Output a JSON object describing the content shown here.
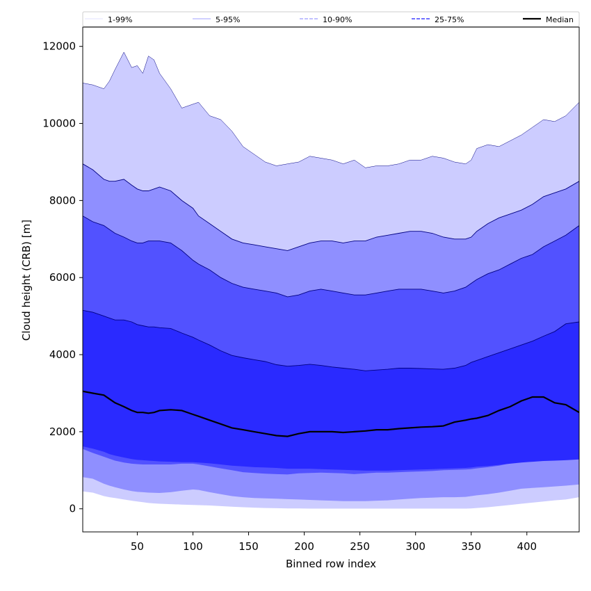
{
  "chart_data": {
    "type": "area",
    "title": "",
    "xlabel": "Binned row index",
    "ylabel": "Cloud height (CRB) [m]",
    "xlim": [
      1,
      447
    ],
    "ylim": [
      -600,
      12500
    ],
    "xticks": [
      50,
      100,
      150,
      200,
      250,
      300,
      350,
      400
    ],
    "yticks": [
      0,
      2000,
      4000,
      6000,
      8000,
      10000,
      12000
    ],
    "legend_placement": "top, horizontal",
    "legend": [
      {
        "label": "1-99%",
        "style": "band-1-99"
      },
      {
        "label": "5-95%",
        "style": "band-5-95"
      },
      {
        "label": "10-90%",
        "style": "band-10-90"
      },
      {
        "label": "25-75%",
        "style": "band-25-75"
      },
      {
        "label": "Median",
        "style": "median"
      }
    ],
    "colors": {
      "band_1_99": "#ccccff",
      "band_5_95": "#8f8fff",
      "band_10_90": "#5252ff",
      "band_25_75": "#2a2aff",
      "edge": "#000080",
      "median": "#000000"
    },
    "x": [
      1,
      10,
      20,
      25,
      30,
      38,
      45,
      50,
      55,
      60,
      65,
      70,
      80,
      90,
      100,
      105,
      115,
      125,
      135,
      145,
      155,
      165,
      175,
      185,
      195,
      205,
      215,
      225,
      235,
      245,
      255,
      265,
      275,
      285,
      295,
      305,
      315,
      325,
      335,
      345,
      350,
      355,
      365,
      375,
      385,
      395,
      405,
      415,
      425,
      435,
      447
    ],
    "series": [
      {
        "name": "1-99%",
        "lower": [
          450,
          420,
          330,
          300,
          280,
          240,
          210,
          190,
          170,
          150,
          140,
          130,
          120,
          110,
          100,
          95,
          85,
          70,
          55,
          40,
          30,
          20,
          15,
          10,
          10,
          5,
          5,
          5,
          5,
          5,
          5,
          5,
          5,
          5,
          5,
          5,
          5,
          5,
          5,
          5,
          10,
          20,
          40,
          70,
          100,
          130,
          160,
          190,
          220,
          240,
          300
        ],
        "upper": [
          11050,
          11000,
          10900,
          11100,
          11400,
          11850,
          11450,
          11500,
          11300,
          11750,
          11650,
          11300,
          10900,
          10400,
          10500,
          10550,
          10200,
          10100,
          9800,
          9400,
          9200,
          9000,
          8900,
          8950,
          9000,
          9150,
          9100,
          9050,
          8950,
          9050,
          8850,
          8900,
          8900,
          8950,
          9050,
          9050,
          9150,
          9100,
          9000,
          8950,
          9050,
          9350,
          9450,
          9400,
          9550,
          9700,
          9900,
          10100,
          10050,
          10200,
          10550
        ]
      },
      {
        "name": "5-95%",
        "lower": [
          820,
          780,
          650,
          600,
          560,
          500,
          460,
          440,
          430,
          420,
          415,
          410,
          430,
          470,
          500,
          490,
          430,
          380,
          330,
          300,
          280,
          270,
          260,
          250,
          240,
          230,
          220,
          210,
          200,
          200,
          200,
          210,
          220,
          240,
          260,
          280,
          290,
          300,
          300,
          310,
          330,
          350,
          380,
          420,
          470,
          520,
          540,
          560,
          580,
          600,
          630
        ],
        "upper": [
          8950,
          8800,
          8550,
          8500,
          8500,
          8550,
          8400,
          8300,
          8250,
          8250,
          8300,
          8350,
          8250,
          8000,
          7800,
          7600,
          7400,
          7200,
          7000,
          6900,
          6850,
          6800,
          6750,
          6700,
          6800,
          6900,
          6950,
          6950,
          6900,
          6950,
          6950,
          7050,
          7100,
          7150,
          7200,
          7200,
          7150,
          7050,
          7000,
          7000,
          7050,
          7200,
          7400,
          7550,
          7650,
          7750,
          7900,
          8100,
          8200,
          8300,
          8500
        ]
      },
      {
        "name": "10-90%",
        "lower": [
          1550,
          1450,
          1350,
          1300,
          1250,
          1200,
          1170,
          1160,
          1150,
          1150,
          1150,
          1150,
          1150,
          1170,
          1170,
          1150,
          1100,
          1050,
          1000,
          950,
          930,
          910,
          900,
          890,
          920,
          930,
          940,
          930,
          920,
          900,
          920,
          940,
          940,
          950,
          960,
          970,
          980,
          1000,
          1010,
          1020,
          1030,
          1050,
          1080,
          1120,
          1180,
          1250,
          1280,
          1300,
          1300,
          1290,
          1300
        ],
        "upper": [
          7600,
          7450,
          7350,
          7250,
          7150,
          7050,
          6950,
          6900,
          6900,
          6950,
          6950,
          6950,
          6900,
          6700,
          6450,
          6350,
          6200,
          6000,
          5850,
          5750,
          5700,
          5650,
          5600,
          5500,
          5550,
          5650,
          5700,
          5650,
          5600,
          5550,
          5550,
          5600,
          5650,
          5700,
          5700,
          5700,
          5650,
          5600,
          5650,
          5750,
          5850,
          5950,
          6100,
          6200,
          6350,
          6500,
          6600,
          6800,
          6950,
          7100,
          7350
        ]
      },
      {
        "name": "25-75%",
        "lower": [
          1620,
          1560,
          1480,
          1420,
          1380,
          1330,
          1290,
          1270,
          1260,
          1250,
          1240,
          1230,
          1220,
          1210,
          1210,
          1200,
          1180,
          1150,
          1120,
          1100,
          1080,
          1070,
          1060,
          1040,
          1040,
          1040,
          1030,
          1020,
          1010,
          1000,
          990,
          990,
          990,
          1000,
          1010,
          1020,
          1030,
          1040,
          1050,
          1060,
          1070,
          1090,
          1110,
          1140,
          1170,
          1200,
          1220,
          1240,
          1250,
          1260,
          1280
        ],
        "upper": [
          5150,
          5100,
          5000,
          4950,
          4900,
          4900,
          4850,
          4780,
          4750,
          4720,
          4720,
          4700,
          4680,
          4560,
          4450,
          4380,
          4250,
          4100,
          3980,
          3920,
          3870,
          3820,
          3740,
          3700,
          3720,
          3750,
          3720,
          3680,
          3650,
          3620,
          3580,
          3600,
          3620,
          3650,
          3650,
          3640,
          3630,
          3620,
          3650,
          3720,
          3800,
          3850,
          3950,
          4050,
          4150,
          4250,
          4350,
          4480,
          4600,
          4800,
          4850
        ]
      },
      {
        "name": "Median",
        "values": [
          3050,
          3000,
          2950,
          2850,
          2750,
          2650,
          2550,
          2500,
          2500,
          2480,
          2500,
          2550,
          2570,
          2550,
          2450,
          2400,
          2300,
          2200,
          2100,
          2050,
          2000,
          1950,
          1900,
          1880,
          1950,
          2000,
          2000,
          2000,
          1980,
          2000,
          2020,
          2050,
          2050,
          2080,
          2100,
          2120,
          2130,
          2150,
          2250,
          2300,
          2330,
          2350,
          2420,
          2550,
          2650,
          2800,
          2900,
          2900,
          2750,
          2700,
          2500
        ]
      }
    ]
  }
}
